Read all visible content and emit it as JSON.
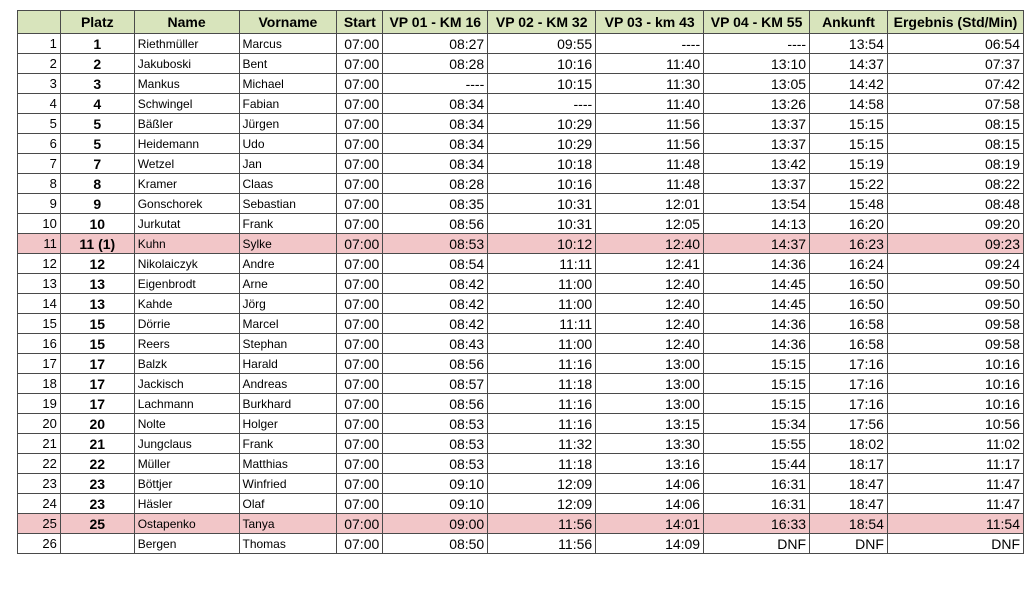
{
  "table": {
    "headers": [
      "",
      "Platz",
      "Name",
      "Vorname",
      "Start",
      "VP 01 - KM 16",
      "VP 02 - KM 32",
      "VP 03 - km 43",
      "VP 04 - KM 55",
      "Ankunft",
      "Ergebnis (Std/Min)"
    ],
    "highlight_color": "#f2c6c8",
    "header_color": "#d8e4bc",
    "rows": [
      {
        "row": "1",
        "platz": "1",
        "name": "Riethmüller",
        "vorname": "Marcus",
        "start": "07:00",
        "vp1": "08:27",
        "vp2": "09:55",
        "vp3": "----",
        "vp4": "----",
        "ankunft": "13:54",
        "ergebnis": "06:54",
        "highlight": false
      },
      {
        "row": "2",
        "platz": "2",
        "name": "Jakuboski",
        "vorname": "Bent",
        "start": "07:00",
        "vp1": "08:28",
        "vp2": "10:16",
        "vp3": "11:40",
        "vp4": "13:10",
        "ankunft": "14:37",
        "ergebnis": "07:37",
        "highlight": false
      },
      {
        "row": "3",
        "platz": "3",
        "name": "Mankus",
        "vorname": "Michael",
        "start": "07:00",
        "vp1": "----",
        "vp2": "10:15",
        "vp3": "11:30",
        "vp4": "13:05",
        "ankunft": "14:42",
        "ergebnis": "07:42",
        "highlight": false
      },
      {
        "row": "4",
        "platz": "4",
        "name": "Schwingel",
        "vorname": "Fabian",
        "start": "07:00",
        "vp1": "08:34",
        "vp2": "----",
        "vp3": "11:40",
        "vp4": "13:26",
        "ankunft": "14:58",
        "ergebnis": "07:58",
        "highlight": false
      },
      {
        "row": "5",
        "platz": "5",
        "name": "Bäßler",
        "vorname": "Jürgen",
        "start": "07:00",
        "vp1": "08:34",
        "vp2": "10:29",
        "vp3": "11:56",
        "vp4": "13:37",
        "ankunft": "15:15",
        "ergebnis": "08:15",
        "highlight": false
      },
      {
        "row": "6",
        "platz": "5",
        "name": "Heidemann",
        "vorname": "Udo",
        "start": "07:00",
        "vp1": "08:34",
        "vp2": "10:29",
        "vp3": "11:56",
        "vp4": "13:37",
        "ankunft": "15:15",
        "ergebnis": "08:15",
        "highlight": false
      },
      {
        "row": "7",
        "platz": "7",
        "name": "Wetzel",
        "vorname": "Jan",
        "start": "07:00",
        "vp1": "08:34",
        "vp2": "10:18",
        "vp3": "11:48",
        "vp4": "13:42",
        "ankunft": "15:19",
        "ergebnis": "08:19",
        "highlight": false
      },
      {
        "row": "8",
        "platz": "8",
        "name": "Kramer",
        "vorname": "Claas",
        "start": "07:00",
        "vp1": "08:28",
        "vp2": "10:16",
        "vp3": "11:48",
        "vp4": "13:37",
        "ankunft": "15:22",
        "ergebnis": "08:22",
        "highlight": false
      },
      {
        "row": "9",
        "platz": "9",
        "name": "Gonschorek",
        "vorname": "Sebastian",
        "start": "07:00",
        "vp1": "08:35",
        "vp2": "10:31",
        "vp3": "12:01",
        "vp4": "13:54",
        "ankunft": "15:48",
        "ergebnis": "08:48",
        "highlight": false
      },
      {
        "row": "10",
        "platz": "10",
        "name": "Jurkutat",
        "vorname": "Frank",
        "start": "07:00",
        "vp1": "08:56",
        "vp2": "10:31",
        "vp3": "12:05",
        "vp4": "14:13",
        "ankunft": "16:20",
        "ergebnis": "09:20",
        "highlight": false
      },
      {
        "row": "11",
        "platz": "11 (1)",
        "name": "Kuhn",
        "vorname": "Sylke",
        "start": "07:00",
        "vp1": "08:53",
        "vp2": "10:12",
        "vp3": "12:40",
        "vp4": "14:37",
        "ankunft": "16:23",
        "ergebnis": "09:23",
        "highlight": true
      },
      {
        "row": "12",
        "platz": "12",
        "name": "Nikolaiczyk",
        "vorname": "Andre",
        "start": "07:00",
        "vp1": "08:54",
        "vp2": "11:11",
        "vp3": "12:41",
        "vp4": "14:36",
        "ankunft": "16:24",
        "ergebnis": "09:24",
        "highlight": false
      },
      {
        "row": "13",
        "platz": "13",
        "name": "Eigenbrodt",
        "vorname": "Arne",
        "start": "07:00",
        "vp1": "08:42",
        "vp2": "11:00",
        "vp3": "12:40",
        "vp4": "14:45",
        "ankunft": "16:50",
        "ergebnis": "09:50",
        "highlight": false
      },
      {
        "row": "14",
        "platz": "13",
        "name": "Kahde",
        "vorname": "Jörg",
        "start": "07:00",
        "vp1": "08:42",
        "vp2": "11:00",
        "vp3": "12:40",
        "vp4": "14:45",
        "ankunft": "16:50",
        "ergebnis": "09:50",
        "highlight": false
      },
      {
        "row": "15",
        "platz": "15",
        "name": "Dörrie",
        "vorname": "Marcel",
        "start": "07:00",
        "vp1": "08:42",
        "vp2": "11:11",
        "vp3": "12:40",
        "vp4": "14:36",
        "ankunft": "16:58",
        "ergebnis": "09:58",
        "highlight": false
      },
      {
        "row": "16",
        "platz": "15",
        "name": "Reers",
        "vorname": "Stephan",
        "start": "07:00",
        "vp1": "08:43",
        "vp2": "11:00",
        "vp3": "12:40",
        "vp4": "14:36",
        "ankunft": "16:58",
        "ergebnis": "09:58",
        "highlight": false
      },
      {
        "row": "17",
        "platz": "17",
        "name": "Balzk",
        "vorname": "Harald",
        "start": "07:00",
        "vp1": "08:56",
        "vp2": "11:16",
        "vp3": "13:00",
        "vp4": "15:15",
        "ankunft": "17:16",
        "ergebnis": "10:16",
        "highlight": false
      },
      {
        "row": "18",
        "platz": "17",
        "name": "Jackisch",
        "vorname": "Andreas",
        "start": "07:00",
        "vp1": "08:57",
        "vp2": "11:18",
        "vp3": "13:00",
        "vp4": "15:15",
        "ankunft": "17:16",
        "ergebnis": "10:16",
        "highlight": false
      },
      {
        "row": "19",
        "platz": "17",
        "name": "Lachmann",
        "vorname": "Burkhard",
        "start": "07:00",
        "vp1": "08:56",
        "vp2": "11:16",
        "vp3": "13:00",
        "vp4": "15:15",
        "ankunft": "17:16",
        "ergebnis": "10:16",
        "highlight": false
      },
      {
        "row": "20",
        "platz": "20",
        "name": "Nolte",
        "vorname": "Holger",
        "start": "07:00",
        "vp1": "08:53",
        "vp2": "11:16",
        "vp3": "13:15",
        "vp4": "15:34",
        "ankunft": "17:56",
        "ergebnis": "10:56",
        "highlight": false
      },
      {
        "row": "21",
        "platz": "21",
        "name": "Jungclaus",
        "vorname": "Frank",
        "start": "07:00",
        "vp1": "08:53",
        "vp2": "11:32",
        "vp3": "13:30",
        "vp4": "15:55",
        "ankunft": "18:02",
        "ergebnis": "11:02",
        "highlight": false
      },
      {
        "row": "22",
        "platz": "22",
        "name": "Müller",
        "vorname": "Matthias",
        "start": "07:00",
        "vp1": "08:53",
        "vp2": "11:18",
        "vp3": "13:16",
        "vp4": "15:44",
        "ankunft": "18:17",
        "ergebnis": "11:17",
        "highlight": false
      },
      {
        "row": "23",
        "platz": "23",
        "name": "Böttjer",
        "vorname": "Winfried",
        "start": "07:00",
        "vp1": "09:10",
        "vp2": "12:09",
        "vp3": "14:06",
        "vp4": "16:31",
        "ankunft": "18:47",
        "ergebnis": "11:47",
        "highlight": false
      },
      {
        "row": "24",
        "platz": "23",
        "name": "Häsler",
        "vorname": "Olaf",
        "start": "07:00",
        "vp1": "09:10",
        "vp2": "12:09",
        "vp3": "14:06",
        "vp4": "16:31",
        "ankunft": "18:47",
        "ergebnis": "11:47",
        "highlight": false
      },
      {
        "row": "25",
        "platz": "25",
        "name": "Ostapenko",
        "vorname": "Tanya",
        "start": "07:00",
        "vp1": "09:00",
        "vp2": "11:56",
        "vp3": "14:01",
        "vp4": "16:33",
        "ankunft": "18:54",
        "ergebnis": "11:54",
        "highlight": true
      },
      {
        "row": "26",
        "platz": "",
        "name": "Bergen",
        "vorname": "Thomas",
        "start": "07:00",
        "vp1": "08:50",
        "vp2": "11:56",
        "vp3": "14:09",
        "vp4": "DNF",
        "ankunft": "DNF",
        "ergebnis": "DNF",
        "highlight": false
      }
    ]
  }
}
